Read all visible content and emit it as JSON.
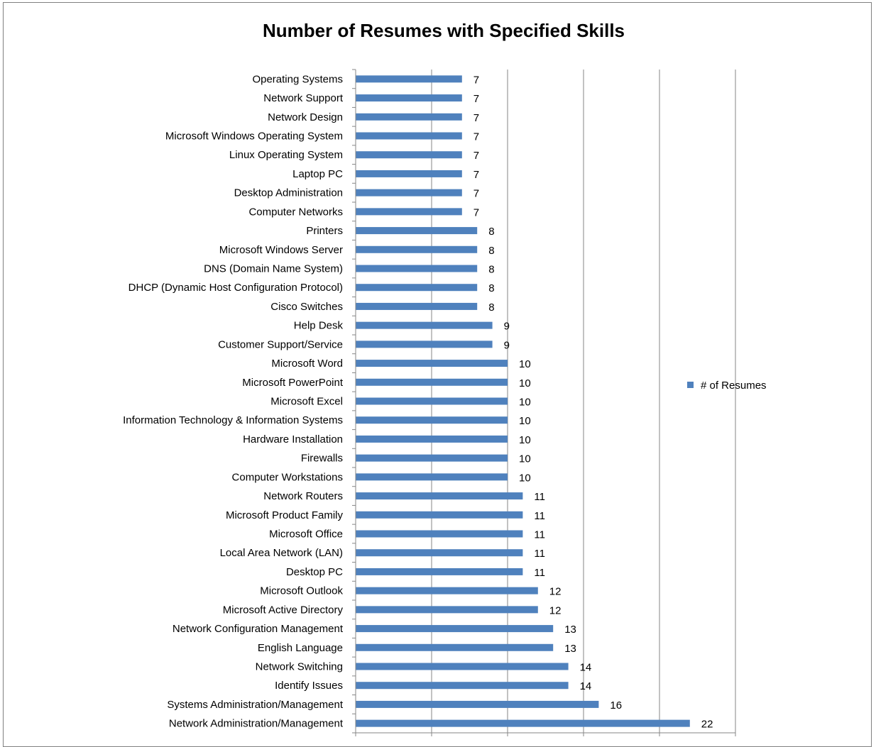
{
  "chart_data": {
    "type": "bar",
    "orientation": "horizontal",
    "title": "Number of Resumes with Specified Skills",
    "xlabel": "",
    "ylabel": "",
    "xlim": [
      0,
      25
    ],
    "xticks": [
      0,
      5,
      10,
      15,
      20,
      25
    ],
    "grid": "vertical major gridlines",
    "legend_position": "right",
    "color": "#4F81BD",
    "categories": [
      "Operating Systems",
      "Network Support",
      "Network Design",
      "Microsoft Windows Operating System",
      "Linux Operating System",
      "Laptop PC",
      "Desktop Administration",
      "Computer Networks",
      "Printers",
      "Microsoft Windows Server",
      "DNS (Domain Name System)",
      "DHCP (Dynamic Host Configuration Protocol)",
      "Cisco Switches",
      "Help Desk",
      "Customer Support/Service",
      "Microsoft Word",
      "Microsoft PowerPoint",
      "Microsoft Excel",
      "Information Technology & Information Systems",
      "Hardware Installation",
      "Firewalls",
      "Computer Workstations",
      "Network Routers",
      "Microsoft Product Family",
      "Microsoft Office",
      "Local Area Network (LAN)",
      "Desktop PC",
      "Microsoft Outlook",
      "Microsoft Active Directory",
      "Network Configuration Management",
      "English Language",
      "Network Switching",
      "Identify Issues",
      "Systems Administration/Management",
      "Network Administration/Management"
    ],
    "series": [
      {
        "name": "# of Resumes",
        "values": [
          7,
          7,
          7,
          7,
          7,
          7,
          7,
          7,
          8,
          8,
          8,
          8,
          8,
          9,
          9,
          10,
          10,
          10,
          10,
          10,
          10,
          10,
          11,
          11,
          11,
          11,
          11,
          12,
          12,
          13,
          13,
          14,
          14,
          16,
          22
        ]
      }
    ]
  }
}
